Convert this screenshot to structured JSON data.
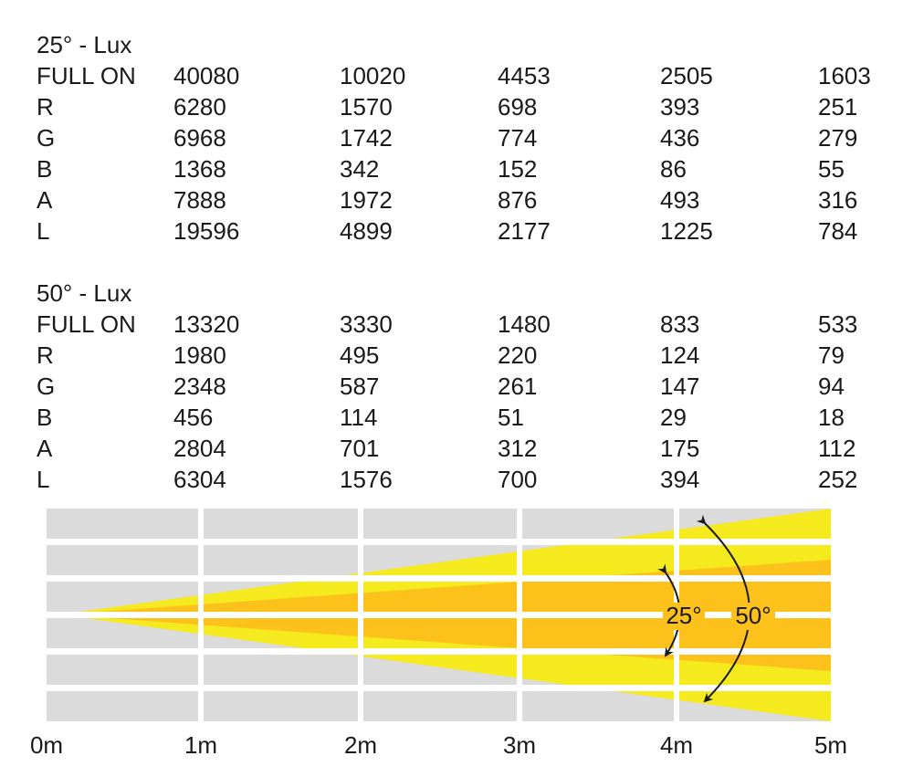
{
  "tables": [
    {
      "title": "25° - Lux",
      "rows": [
        [
          "FULL ON",
          40080,
          10020,
          4453,
          2505,
          1603
        ],
        [
          "R",
          6280,
          1570,
          698,
          393,
          251
        ],
        [
          "G",
          6968,
          1742,
          774,
          436,
          279
        ],
        [
          "B",
          1368,
          342,
          152,
          86,
          55
        ],
        [
          "A",
          7888,
          1972,
          876,
          493,
          316
        ],
        [
          "L",
          19596,
          4899,
          2177,
          1225,
          784
        ]
      ]
    },
    {
      "title": "50° - Lux",
      "rows": [
        [
          "FULL ON",
          13320,
          3330,
          1480,
          833,
          533
        ],
        [
          "R",
          1980,
          495,
          220,
          124,
          79
        ],
        [
          "G",
          2348,
          587,
          261,
          147,
          94
        ],
        [
          "B",
          456,
          114,
          51,
          29,
          18
        ],
        [
          "A",
          2804,
          701,
          312,
          175,
          112
        ],
        [
          "L",
          6304,
          1576,
          700,
          394,
          252
        ]
      ]
    }
  ],
  "diagram": {
    "angles": [
      "25°",
      "50°"
    ],
    "distances": [
      "0m",
      "1m",
      "2m",
      "3m",
      "4m",
      "5m"
    ]
  }
}
